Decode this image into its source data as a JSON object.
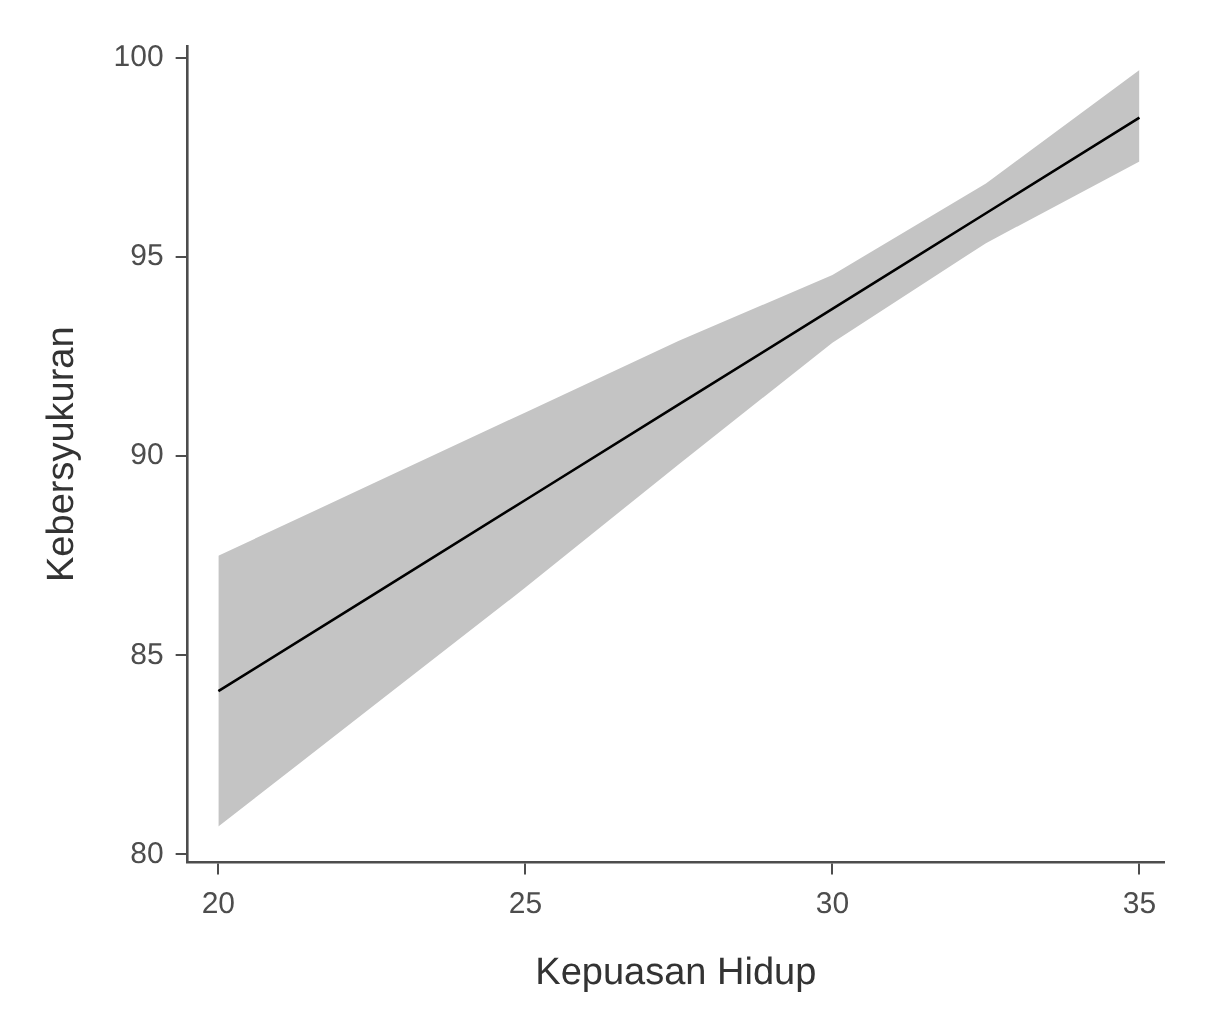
{
  "chart_data": {
    "type": "line",
    "xlabel": "Kepuasan Hidup",
    "ylabel": "Kebersyukuran",
    "x": [
      20,
      22.5,
      25,
      27.5,
      30,
      32.5,
      35
    ],
    "series": [
      {
        "color": "#000000",
        "values": [
          84.1,
          86.5,
          88.9,
          91.3,
          93.7,
          96.1,
          98.5
        ],
        "lower": [
          80.7,
          83.7,
          86.7,
          89.8,
          92.85,
          95.35,
          97.4
        ],
        "upper": [
          87.5,
          89.3,
          91.1,
          92.9,
          94.55,
          96.85,
          99.7
        ]
      }
    ],
    "xlim": [
      19.5,
      35.4
    ],
    "ylim": [
      79.8,
      100.3
    ],
    "xticks": [
      20,
      25,
      30,
      35
    ],
    "yticks": [
      80,
      85,
      90,
      95,
      100
    ],
    "grid": false,
    "legend": false,
    "marker": "none",
    "line_style": "solid"
  }
}
